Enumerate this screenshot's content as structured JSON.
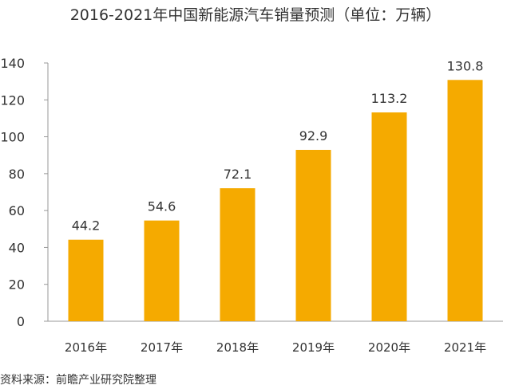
{
  "chart_data": {
    "type": "bar",
    "title": "2016-2021年中国新能源汽车销量预测（单位：万辆）",
    "categories": [
      "2016年",
      "2017年",
      "2018年",
      "2019年",
      "2020年",
      "2021年"
    ],
    "values": [
      44.2,
      54.6,
      72.1,
      92.9,
      113.2,
      130.8
    ],
    "value_labels": [
      "44.2",
      "54.6",
      "72.1",
      "92.9",
      "113.2",
      "130.8"
    ],
    "ylim": [
      0,
      140
    ],
    "yticks": [
      0,
      20,
      40,
      60,
      80,
      100,
      120,
      140
    ],
    "xlabel": "",
    "ylabel": "",
    "grid": false,
    "legend": "none",
    "bar_color": "#f5aa00",
    "axis_color": "#999999"
  },
  "source": "资料来源：前瞻产业研究院整理"
}
